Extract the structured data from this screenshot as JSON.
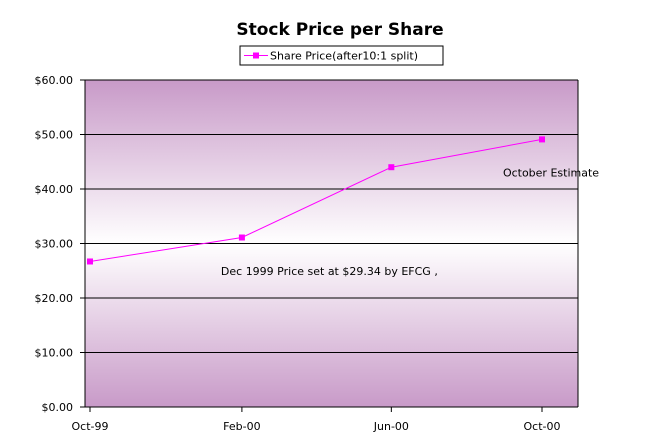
{
  "chart_data": {
    "type": "line",
    "title": "Stock Price per Share",
    "xlabel": "",
    "ylabel": "",
    "x": [
      "Oct-99",
      "Feb-00",
      "Jun-00",
      "Oct-00"
    ],
    "series": [
      {
        "name": "Share Price(after10:1 split)",
        "color": "#ff00ff",
        "points": [
          {
            "x": "1999-10-01",
            "y": 26.7
          },
          {
            "x": "2000-02-01",
            "y": 31.1
          },
          {
            "x": "2000-06-01",
            "y": 44.0
          },
          {
            "x": "2000-10-01",
            "y": 49.1
          }
        ]
      }
    ],
    "ylim": [
      0,
      60
    ],
    "yticks": [
      0,
      10,
      20,
      30,
      40,
      50,
      60
    ],
    "ytick_labels": [
      "$0.00",
      "$10.00",
      "$20.00",
      "$30.00",
      "$40.00",
      "$50.00",
      "$60.00"
    ],
    "xticks": [
      "1999-10-01",
      "2000-02-01",
      "2000-06-01",
      "2000-10-01"
    ],
    "xtick_labels": [
      "Oct-99",
      "Feb-00",
      "Jun-00",
      "Oct-00"
    ],
    "grid": true,
    "legend_position": "top-center",
    "annotations": [
      {
        "text": "Dec 1999 Price set at $29.34 by EFCG ,",
        "x": "2000-01-15",
        "y": 25
      },
      {
        "text": "October Estimate",
        "x": "2000-10-01",
        "y": 43
      }
    ],
    "colors": {
      "plot_edge": "#c89ac8",
      "plot_center": "#ffffff",
      "line": "#ff00ff",
      "grid": "#000000"
    }
  }
}
